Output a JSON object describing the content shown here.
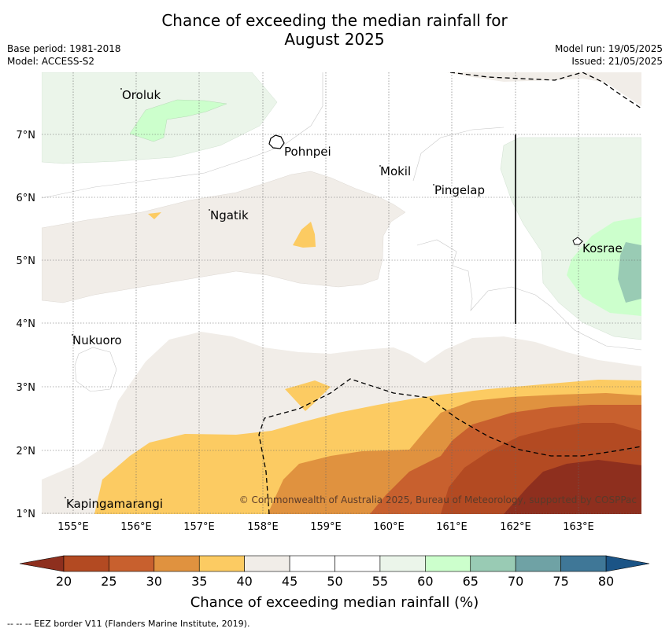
{
  "title": {
    "line1": "Chance of exceeding the median rainfall for",
    "line2": "August 2025"
  },
  "meta": {
    "base_period": "Base period: 1981-2018",
    "model": "Model: ACCESS-S2",
    "model_run": "Model run: 19/05/2025",
    "issued": "Issued: 21/05/2025"
  },
  "map": {
    "lat_labels": [
      "7°N",
      "6°N",
      "5°N",
      "4°N",
      "3°N",
      "2°N",
      "1°N"
    ],
    "lon_labels": [
      "155°E",
      "156°E",
      "157°E",
      "158°E",
      "159°E",
      "160°E",
      "161°E",
      "162°E",
      "163°E"
    ],
    "places": [
      "Oroluk",
      "Pohnpei",
      "Mokil",
      "Pingelap",
      "Ngatik",
      "Kosrae",
      "Nukuoro",
      "Kapingamarangi"
    ],
    "copyright": "© Commonwealth of Australia 2025, Bureau of Meteorology, supported by COSPPac"
  },
  "colorbar": {
    "ticks": [
      "20",
      "25",
      "30",
      "35",
      "40",
      "45",
      "50",
      "55",
      "60",
      "65",
      "70",
      "75",
      "80"
    ],
    "colors": [
      "#b34a22",
      "#c8602e",
      "#e0923f",
      "#fccb62",
      "#f1ede8",
      "#ffffff",
      "#ffffff",
      "#ebf5ea",
      "#ccffcc",
      "#99cbb4",
      "#6fa2a5",
      "#3f7797"
    ],
    "under_color": "#8e2f1e",
    "over_color": "#1b5486",
    "label": "Chance of exceeding median rainfall (%)"
  },
  "footer": {
    "eez_note": "--  --  -- EEZ border V11 (Flanders Marine Institute, 2019)."
  }
}
